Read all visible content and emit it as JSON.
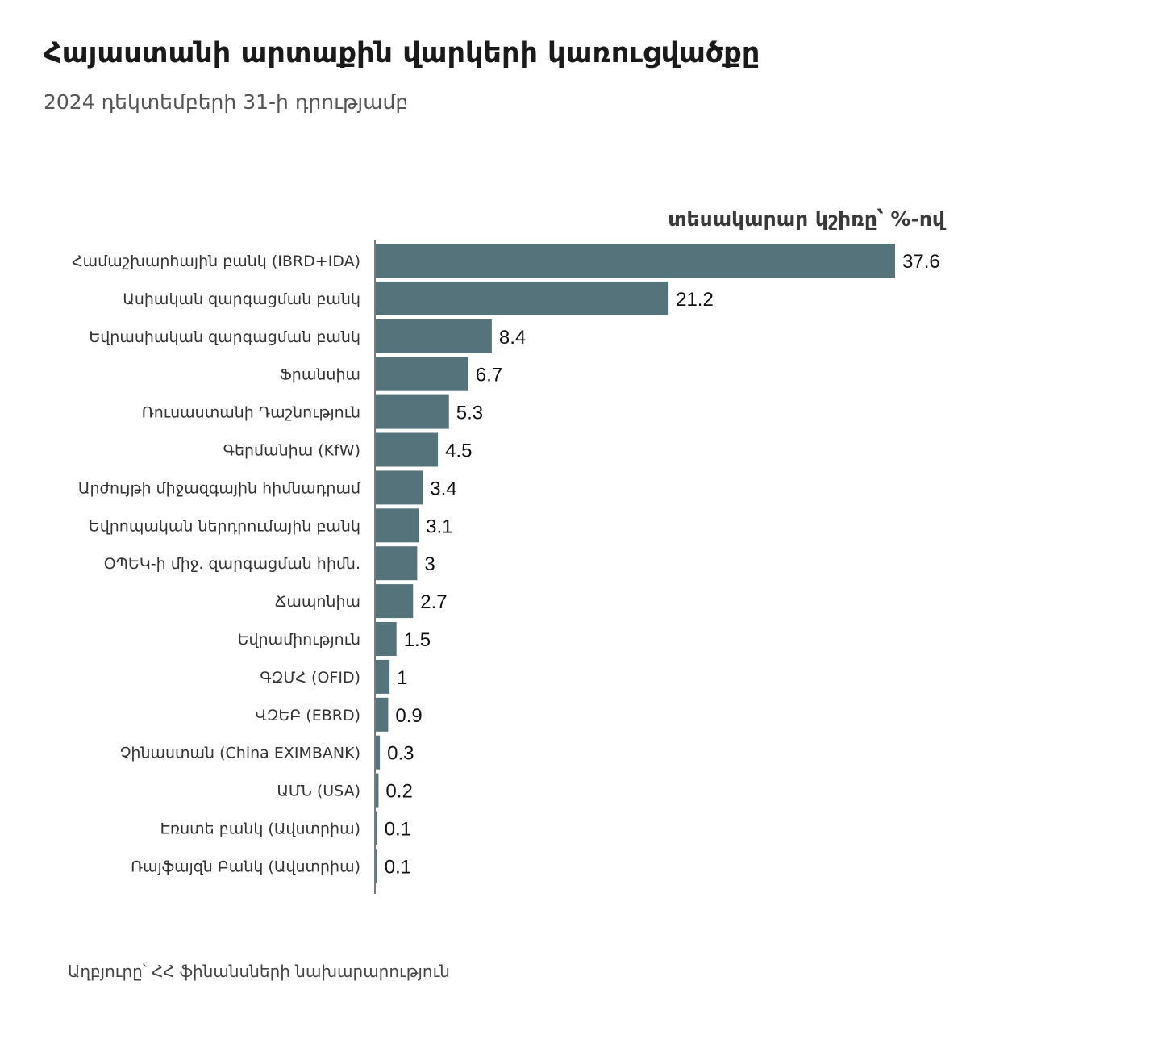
{
  "header": {
    "title": "Հայաստանի արտաքին վարկերի կառուցվածքը",
    "subtitle": "2024 դեկտեմբերի 31-ի դրությամբ"
  },
  "footer": {
    "source": "Աղբյուրը՝ ՀՀ ֆինանսների նախարարություն"
  },
  "chart_data": {
    "type": "bar",
    "orientation": "horizontal",
    "unit_label": "տեսակարար կշիռը՝ %-ով",
    "bar_color": "#55737a",
    "categories": [
      "Համաշխարհային բանկ (IBRD+IDA)",
      "Ասիական զարգացման բանկ",
      "Եվրասիական զարգացման բանկ",
      "Ֆրանսիա",
      "Ռուսաստանի Դաշնություն",
      "Գերմանիա (KfW)",
      "Արժույթի միջազգային հիմնադրամ",
      "Եվրոպական ներդրումային բանկ",
      "ՕՊԵԿ-ի միջ. զարգացման հիմն.",
      "Ճապոնիա",
      "Եվրամիություն",
      "ԳԶՄՀ (OFID)",
      "ՎԶԵԲ (EBRD)",
      "Չինաստան (China EXIMBANK)",
      "ԱՄՆ (USA)",
      "Էռստե բանկ (Ավստրիա)",
      "Ռայֆայզն Բանկ (Ավստրիա)"
    ],
    "values": [
      37.6,
      21.2,
      8.4,
      6.7,
      5.3,
      4.5,
      3.4,
      3.1,
      3,
      2.7,
      1.5,
      1,
      0.9,
      0.3,
      0.2,
      0.1,
      0.1
    ],
    "value_labels": [
      "37.6",
      "21.2",
      "8.4",
      "6.7",
      "5.3",
      "4.5",
      "3.4",
      "3.1",
      "3",
      "2.7",
      "1.5",
      "1",
      "0.9",
      "0.3",
      "0.2",
      "0.1",
      "0.1"
    ],
    "xlim": [
      0,
      40
    ],
    "grid": false,
    "legend": "none"
  }
}
